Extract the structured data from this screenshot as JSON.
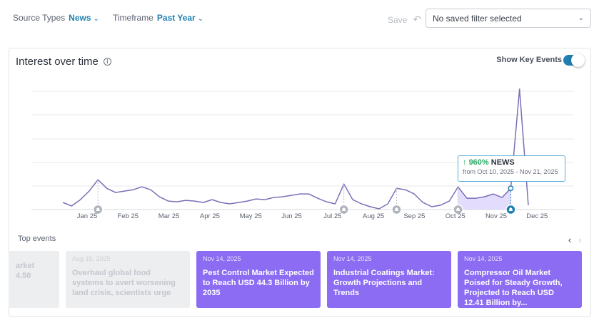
{
  "filters": {
    "source_types_label": "Source Types",
    "source_types_value": "News",
    "timeframe_label": "Timeframe",
    "timeframe_value": "Past Year"
  },
  "save": {
    "label": "Save"
  },
  "saved_filter": {
    "value": "No saved filter selected"
  },
  "card": {
    "title": "Interest over time",
    "info_glyph": "i",
    "key_events_label": "Show Key Events",
    "key_events_on": true
  },
  "chart_data": {
    "type": "line",
    "series": [
      {
        "values": [
          0.1,
          0.05,
          0.14,
          0.26,
          0.42,
          0.3,
          0.24,
          0.26,
          0.28,
          0.32,
          0.28,
          0.18,
          0.12,
          0.11,
          0.13,
          0.12,
          0.1,
          0.14,
          0.1,
          0.08,
          0.1,
          0.12,
          0.15,
          0.14,
          0.17,
          0.18,
          0.2,
          0.22,
          0.22,
          0.16,
          0.11,
          0.08,
          0.36,
          0.14,
          0.08,
          0.04,
          0.01,
          0.08,
          0.3,
          0.28,
          0.22,
          0.1,
          0.04,
          0.06,
          0.12,
          0.32,
          0.16,
          0.16,
          0.18,
          0.22,
          0.17,
          0.3,
          1.7,
          0.06
        ]
      }
    ],
    "x_ticks": [
      "Jan 25",
      "Feb 25",
      "Mar 25",
      "Apr 25",
      "May 25",
      "Jun 25",
      "Jul 25",
      "Aug 25",
      "Sep 25",
      "Oct 25",
      "Nov 25",
      "Dec 25"
    ],
    "highlight_range": {
      "from_index": 45,
      "to_index": 51
    },
    "event_markers_at_index": [
      4,
      32,
      38,
      45,
      51
    ],
    "grid": true,
    "ylim": [
      0,
      1.75
    ]
  },
  "tooltip": {
    "arrow": "↑",
    "pct": "960%",
    "source": "NEWS",
    "range": "from Oct 10, 2025 - Nov 21, 2025"
  },
  "top_events": {
    "label": "Top events",
    "prev": "‹",
    "next": "›",
    "items": [
      {
        "date": "",
        "title": "arket\n4.50",
        "style": "faded"
      },
      {
        "date": "Aug 15, 2025",
        "title": "Overhaul global food systems to avert worsening land crisis, scientists urge",
        "style": "faded"
      },
      {
        "date": "Nov 14, 2025",
        "title": "Pest Control Market Expected to Reach USD 44.3 Billion by 2035",
        "style": "purple"
      },
      {
        "date": "Nov 14, 2025",
        "title": "Industrial Coatings Market: Growth Projections and Trends",
        "style": "purple"
      },
      {
        "date": "Nov 14, 2025",
        "title": "Compressor Oil Market Poised for Steady Growth, Projected to Reach USD 12.41 Billion by...",
        "style": "purple"
      }
    ]
  }
}
